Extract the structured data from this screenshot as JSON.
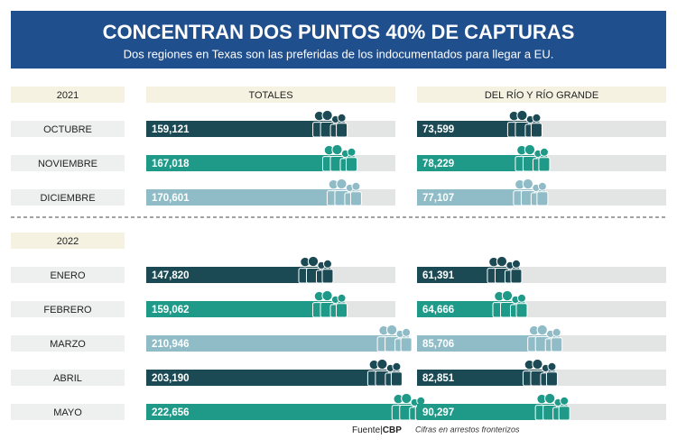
{
  "title": "CONCENTRAN DOS PUNTOS 40% DE CAPTURAS",
  "subtitle": "Dos regiones en Texas son las preferidas de los indocumentados para llegar a EU.",
  "source": {
    "label": "Fuente",
    "name": "CBP"
  },
  "note": "Cifras en arrestos fronterizos",
  "chart_data": {
    "type": "bar",
    "orientation": "horizontal",
    "categories": [
      "OCTUBRE",
      "NOVIEMBRE",
      "DICIEMBRE",
      "ENERO",
      "FEBRERO",
      "MARZO",
      "ABRIL",
      "MAYO"
    ],
    "years": [
      "2021",
      null,
      null,
      "2022",
      null,
      null,
      null,
      null
    ],
    "colors": [
      "#1b4a55",
      "#1f9a88",
      "#8fbcc6",
      "#1b4a55",
      "#1f9a88",
      "#8fbcc6",
      "#1b4a55",
      "#1f9a88"
    ],
    "series": [
      {
        "name": "TOTALES",
        "xlim": [
          0,
          200000
        ],
        "values": [
          159121,
          167018,
          170601,
          147820,
          159062,
          210946,
          203190,
          222656
        ],
        "value_labels": [
          "159,121",
          "167,018",
          "170,601",
          "147,820",
          "159,062",
          "210,946",
          "203,190",
          "222,656"
        ]
      },
      {
        "name": "DEL RÍO Y RÍO GRANDE",
        "xlim": [
          0,
          150000
        ],
        "values": [
          73599,
          78229,
          77107,
          61391,
          64666,
          85706,
          82851,
          90297
        ],
        "value_labels": [
          "73,599",
          "78,229",
          "77,107",
          "61,391",
          "64,666",
          "85,706",
          "82,851",
          "90,297"
        ]
      }
    ]
  }
}
